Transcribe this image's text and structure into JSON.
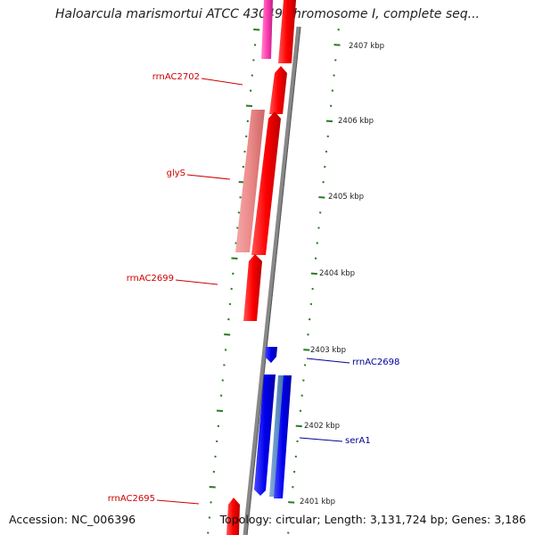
{
  "title": "Haloarcula marismortui ATCC 43049 chromosome I, complete seq...",
  "accession": "Accession: NC_006396",
  "topology": "Topology: circular; Length: 3,131,724 bp; Genes: 3,186",
  "colors": {
    "forward_gene": "#ff0000",
    "forward_gene_light": "#ee8888",
    "forward_gene_pink": "#ff3fb0",
    "reverse_gene": "#0000ee",
    "reverse_gene_light": "#5a8ac0",
    "backbone": "#888888",
    "tick": "#2a7a20",
    "label_red": "#cc0000",
    "label_blue": "#000099"
  },
  "scale_labels": [
    "2407 kbp",
    "2406 kbp",
    "2405 kbp",
    "2404 kbp",
    "2403 kbp",
    "2402 kbp",
    "2401 kbp"
  ],
  "gene_labels": {
    "rrnAC2702": "rrnAC2702",
    "glyS": "glyS",
    "rrnAC2699": "rrnAC2699",
    "rrnAC2698": "rrnAC2698",
    "serA1": "serA1",
    "rrnAC2695": "rrnAC2695"
  }
}
